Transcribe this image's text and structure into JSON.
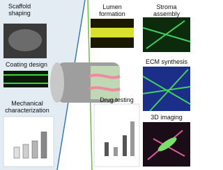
{
  "panels": {
    "left": [
      "Scaffold shaping",
      "Coating design",
      "Mechanical characterization"
    ],
    "right": [
      "Lumen formation",
      "Stroma assembly",
      "ECM synthesis",
      "Drug testing",
      "3D imaging"
    ]
  }
}
